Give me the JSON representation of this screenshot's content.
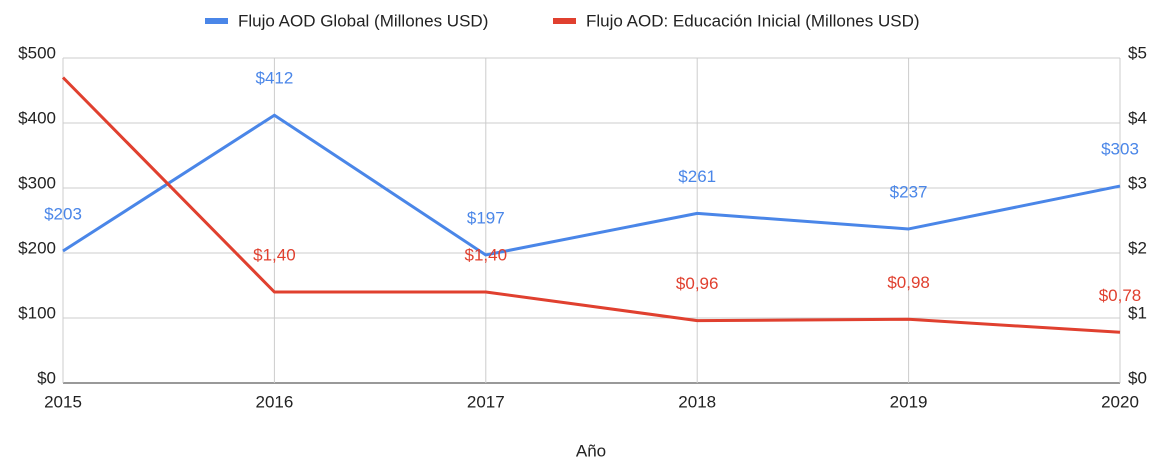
{
  "chart_data": {
    "type": "line",
    "x_label": "Año",
    "x": [
      2015,
      2016,
      2017,
      2018,
      2019,
      2020
    ],
    "xlim": [
      2015,
      2020
    ],
    "xticks": [
      2015,
      2016,
      2017,
      2018,
      2019,
      2020
    ],
    "series": [
      {
        "name": "Flujo AOD Global (Millones USD)",
        "color": "#4a86e8",
        "axis": "y",
        "values": [
          203,
          412,
          197,
          261,
          237,
          303
        ],
        "value_labels": [
          "$203",
          "$412",
          "$197",
          "$261",
          "$237",
          "$303"
        ]
      },
      {
        "name": "Flujo AOD: Educación Inicial (Millones USD)",
        "color": "#e0402f",
        "axis": "y2",
        "values": [
          4.7,
          1.4,
          1.4,
          0.96,
          0.98,
          0.78
        ],
        "value_labels": [
          null,
          "$1,40",
          "$1,40",
          "$0,96",
          "$0,98",
          "$0,78"
        ]
      }
    ],
    "ylim": [
      0,
      500
    ],
    "yticks": [
      {
        "value": 0,
        "label": "$0"
      },
      {
        "value": 100,
        "label": "$100"
      },
      {
        "value": 200,
        "label": "$200"
      },
      {
        "value": 300,
        "label": "$300"
      },
      {
        "value": 400,
        "label": "$400"
      },
      {
        "value": 500,
        "label": "$500"
      }
    ],
    "y2lim": [
      0,
      5
    ],
    "y2ticks": [
      {
        "value": 0,
        "label": "$0"
      },
      {
        "value": 1,
        "label": "$1"
      },
      {
        "value": 2,
        "label": "$2"
      },
      {
        "value": 3,
        "label": "$3"
      },
      {
        "value": 4,
        "label": "$4"
      },
      {
        "value": 5,
        "label": "$5"
      }
    ],
    "grid": true,
    "legend": "top"
  }
}
